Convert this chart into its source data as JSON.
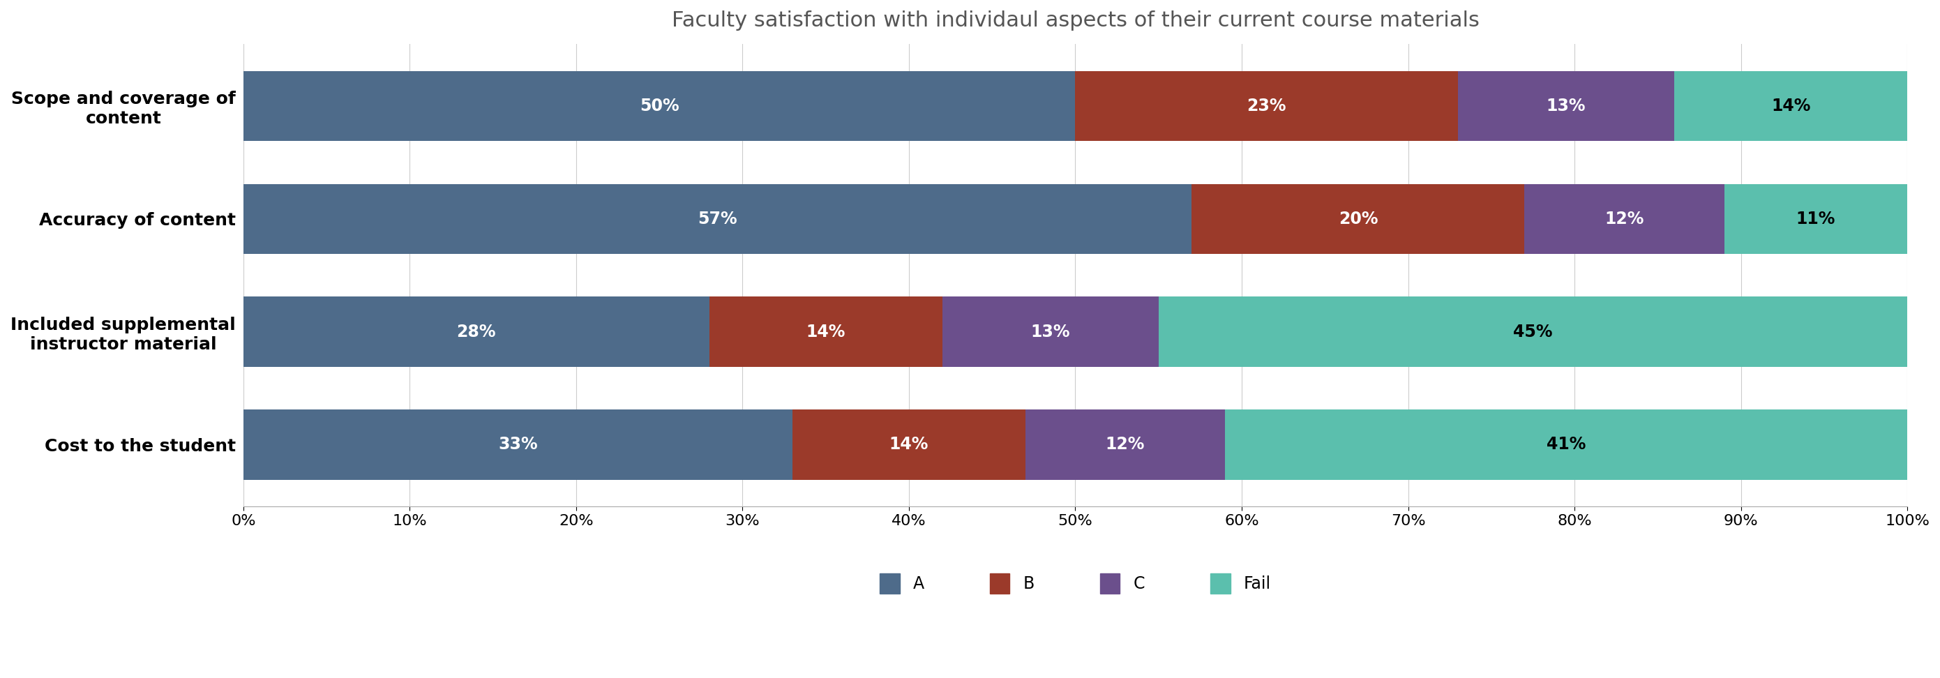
{
  "title": "Faculty satisfaction with individaul aspects of their current course materials",
  "categories": [
    "Cost to the student",
    "Included supplemental\ninstructor material",
    "Accuracy of content",
    "Scope and coverage of\ncontent"
  ],
  "series": {
    "A": [
      33,
      28,
      57,
      50
    ],
    "B": [
      14,
      14,
      20,
      23
    ],
    "C": [
      12,
      13,
      12,
      13
    ],
    "Fail": [
      41,
      45,
      11,
      14
    ]
  },
  "colors": {
    "A": "#4e6b8a",
    "B": "#9b3a2a",
    "C": "#6b4f8c",
    "Fail": "#5bbfad"
  },
  "bar_label_colors": {
    "A": "white",
    "B": "white",
    "C": "white",
    "Fail": "black"
  },
  "bar_labels": {
    "A": [
      "33%",
      "28%",
      "57%",
      "50%"
    ],
    "B": [
      "14%",
      "14%",
      "20%",
      "23%"
    ],
    "C": [
      "12%",
      "13%",
      "12%",
      "13%"
    ],
    "Fail": [
      "41%",
      "45%",
      "11%",
      "14%"
    ]
  },
  "xlim": [
    0,
    100
  ],
  "xticks": [
    0,
    10,
    20,
    30,
    40,
    50,
    60,
    70,
    80,
    90,
    100
  ],
  "xtick_labels": [
    "0%",
    "10%",
    "20%",
    "30%",
    "40%",
    "50%",
    "60%",
    "70%",
    "80%",
    "90%",
    "100%"
  ],
  "background_color": "#ffffff",
  "title_fontsize": 22,
  "tick_fontsize": 16,
  "label_fontsize": 17,
  "legend_fontsize": 17,
  "bar_height": 0.62
}
